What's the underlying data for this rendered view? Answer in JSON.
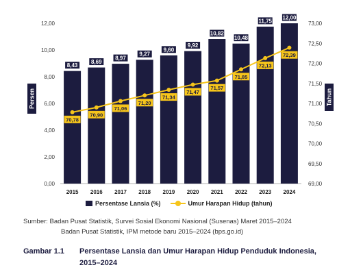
{
  "chart_data": {
    "type": "bar",
    "categories": [
      "2015",
      "2016",
      "2017",
      "2018",
      "2019",
      "2020",
      "2021",
      "2022",
      "2023",
      "2024"
    ],
    "series": [
      {
        "name": "Persentase Lansia (%)",
        "type": "bar",
        "axis": "left",
        "color": "#1c1c3f",
        "values": [
          8.43,
          8.69,
          8.97,
          9.27,
          9.6,
          9.92,
          10.82,
          10.48,
          11.75,
          12.0
        ],
        "labels": [
          "8,43",
          "8,69",
          "8,97",
          "9,27",
          "9,60",
          "9,92",
          "10,82",
          "10,48",
          "11,75",
          "12,00"
        ]
      },
      {
        "name": "Umur Harapan Hidup (tahun)",
        "type": "line",
        "axis": "right",
        "color": "#f6c51b",
        "values": [
          70.78,
          70.9,
          71.06,
          71.2,
          71.34,
          71.47,
          71.57,
          71.85,
          72.13,
          72.39
        ],
        "labels": [
          "70,78",
          "70,90",
          "71,06",
          "71,20",
          "71,34",
          "71,47",
          "71,57",
          "71,85",
          "72,13",
          "72,39"
        ]
      }
    ],
    "ylabel_left": "Persen",
    "ylabel_right": "Tahun",
    "ylim_left": [
      0,
      12
    ],
    "ylim_right": [
      69,
      73
    ],
    "yticks_left": [
      "0,00",
      "2,00",
      "4,00",
      "6,00",
      "8,00",
      "10,00",
      "12,00"
    ],
    "yticks_right": [
      "69,00",
      "69,50",
      "70,00",
      "70,50",
      "71,00",
      "71,50",
      "72,00",
      "72,50",
      "73,00"
    ],
    "legend_position": "bottom",
    "grid": false
  },
  "source": {
    "line1": "Sumber: Badan Pusat Statistik, Survei Sosial Ekonomi Nasional (Susenas) Maret 2015–2024",
    "line2": "Badan Pusat Statistik, IPM metode baru 2015–2024 (bps.go.id)"
  },
  "caption": {
    "label": "Gambar 1.1",
    "line1": "Persentase Lansia dan Umur Harapan Hidup Penduduk Indonesia,",
    "line2": "2015–2024"
  }
}
